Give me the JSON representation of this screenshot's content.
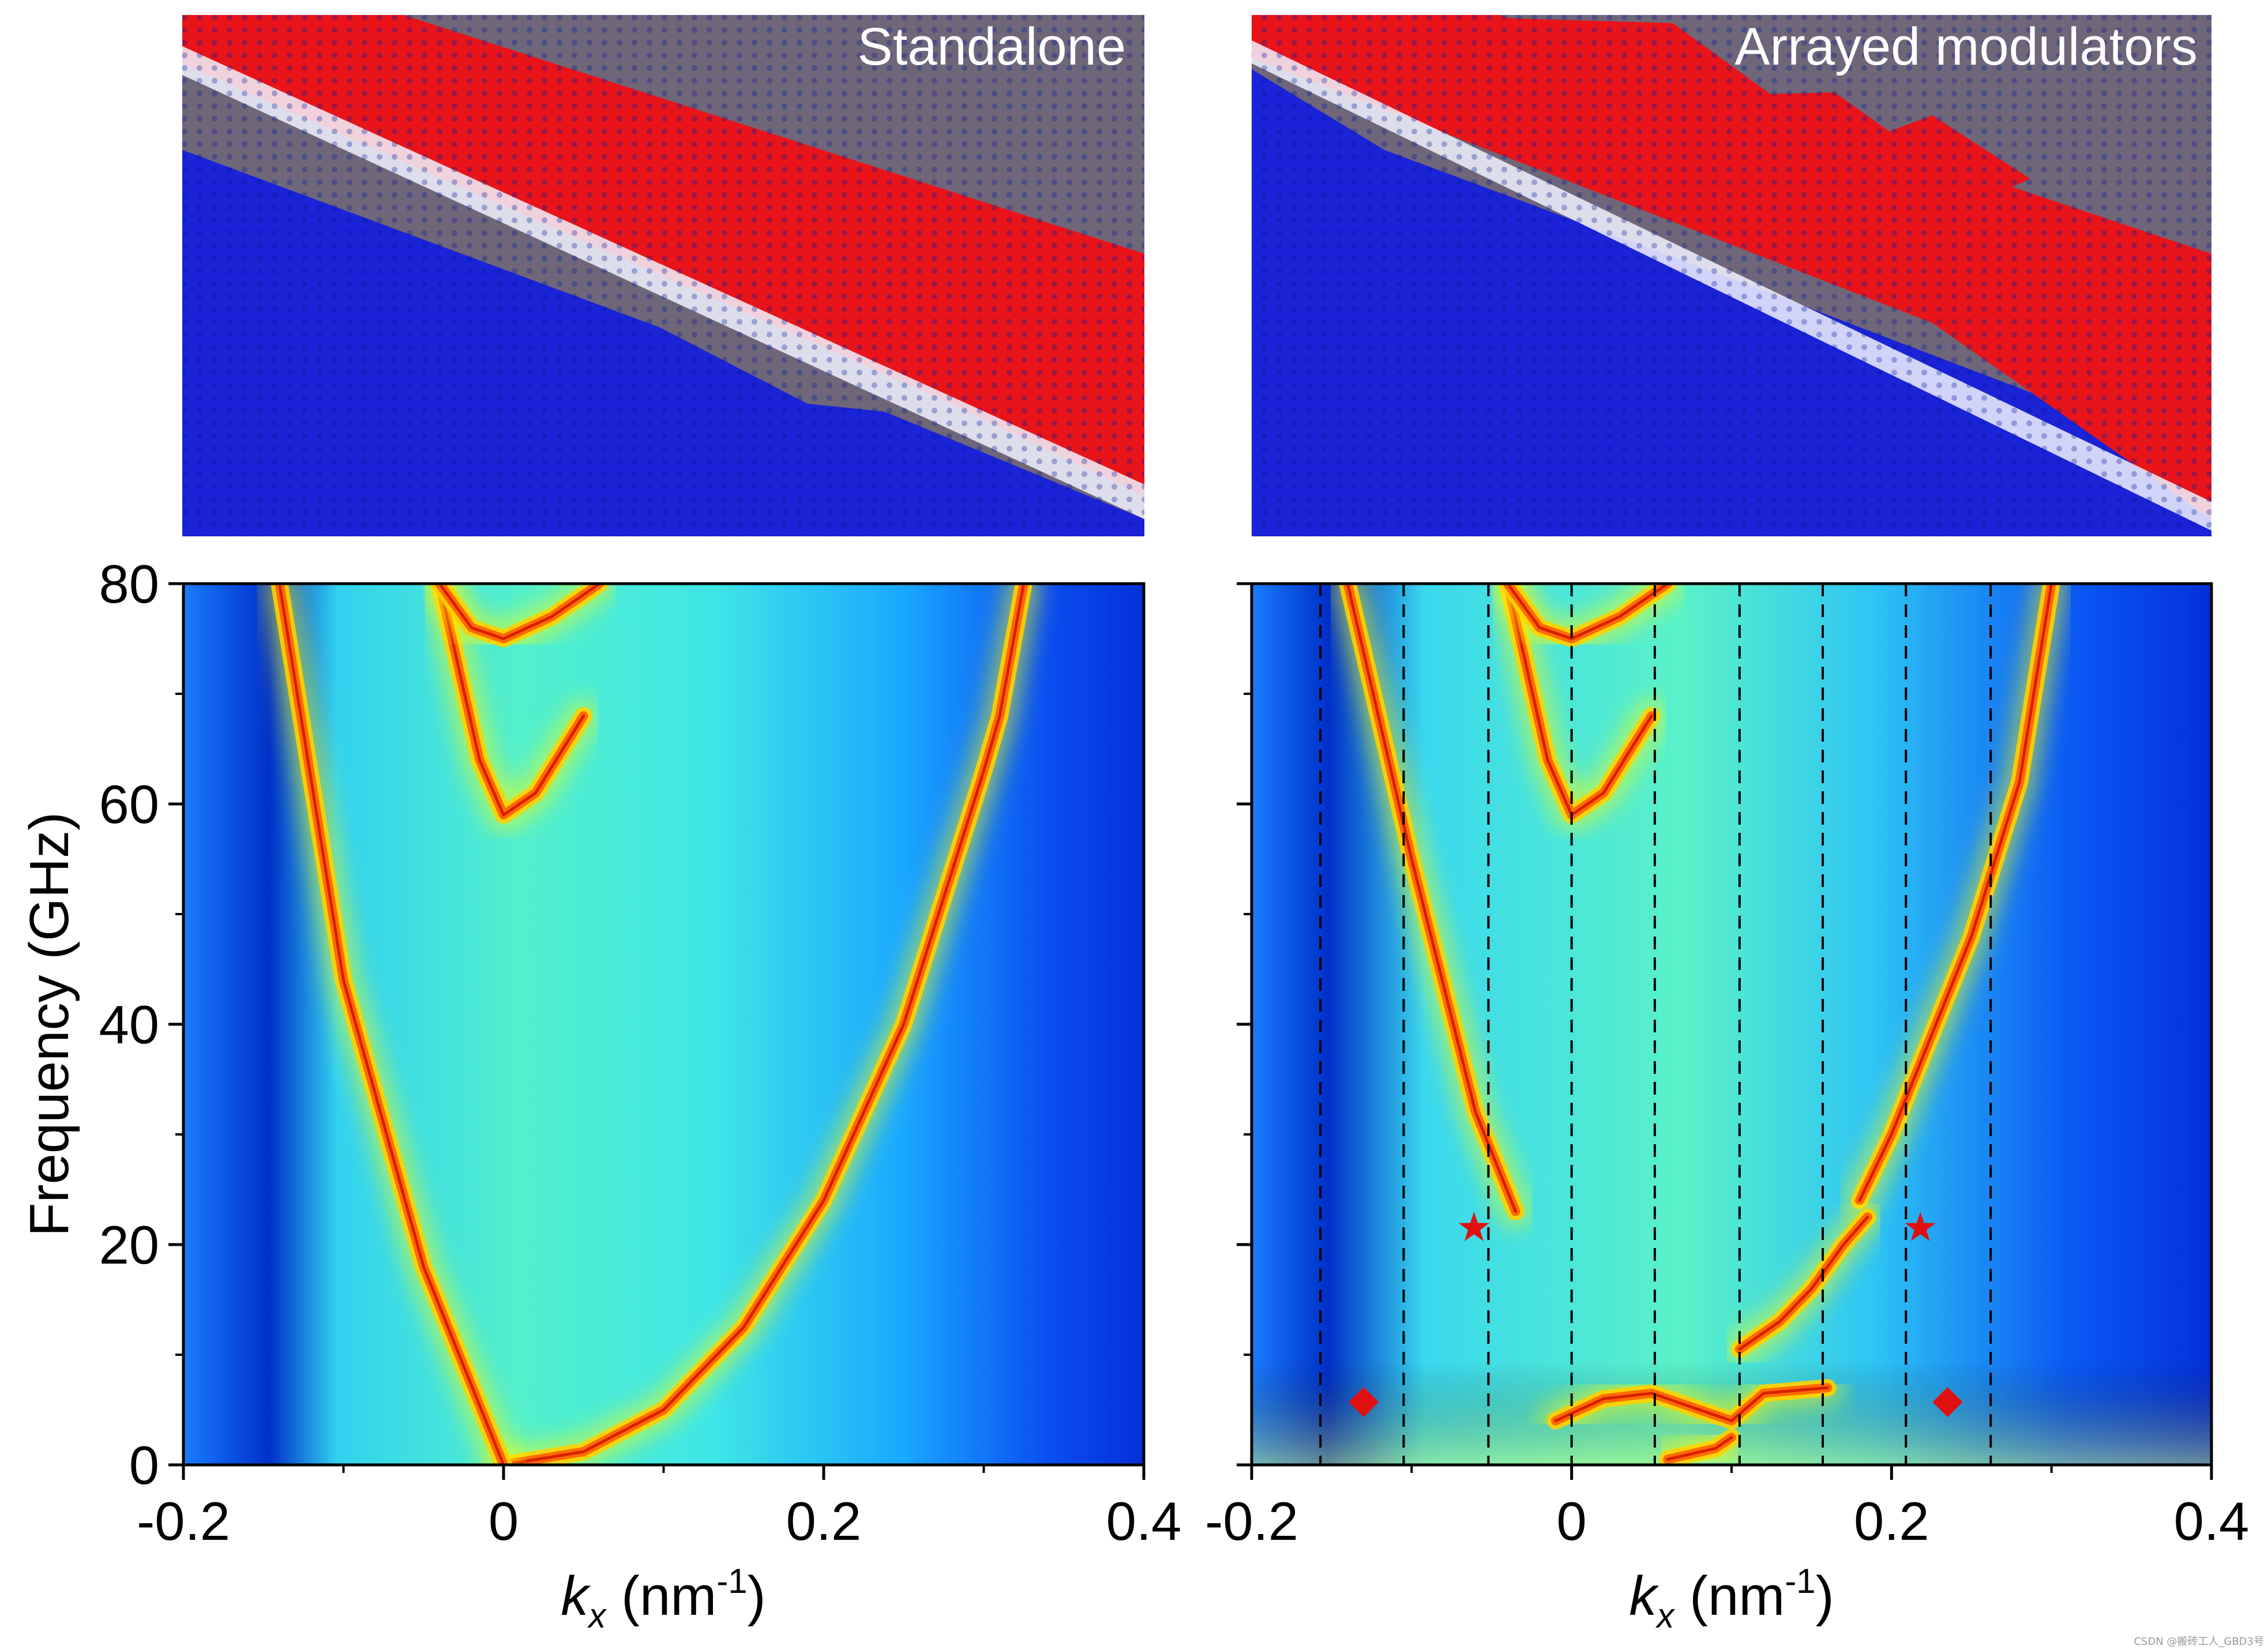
{
  "colors": {
    "spin_up": "#e8141a",
    "spin_down": "#1a23d6",
    "panel_bg": "#6f6679",
    "marker": "#e01010",
    "colormap": [
      "#00008f",
      "#0030ff",
      "#00c8ff",
      "#2cf0d8",
      "#ffff00",
      "#ff7f00",
      "#c00000"
    ]
  },
  "top_panels": {
    "left": {
      "title": "Standalone",
      "icon": "spin-texture-render"
    },
    "right": {
      "title": "Arrayed modulators",
      "icon": "spin-texture-render"
    }
  },
  "chart_data": [
    {
      "type": "heatmap",
      "name": "standalone-dispersion",
      "title": "",
      "xlabel_italic": "k",
      "xlabel_sub": "x",
      "xlabel_unit": " (nm",
      "xlabel_sup": "-1",
      "xlabel_close": ")",
      "ylabel": "Frequency (GHz)",
      "xlim": [
        -0.2,
        0.4
      ],
      "ylim": [
        0,
        80
      ],
      "xticks": [
        -0.2,
        0,
        0.2,
        0.4
      ],
      "xtick_labels": [
        "-0.2",
        "0",
        "0.2",
        "0.4"
      ],
      "yticks": [
        0,
        20,
        40,
        60,
        80
      ],
      "ytick_labels": [
        "0",
        "20",
        "40",
        "60",
        "80"
      ],
      "ridges": [
        {
          "name": "right-parabola",
          "points": [
            [
              0.0,
              0
            ],
            [
              0.05,
              1.2
            ],
            [
              0.1,
              5.0
            ],
            [
              0.15,
              12.5
            ],
            [
              0.2,
              24
            ],
            [
              0.25,
              40
            ],
            [
              0.3,
              63
            ],
            [
              0.31,
              68
            ],
            [
              0.325,
              80
            ]
          ]
        },
        {
          "name": "left-linear",
          "points": [
            [
              0.0,
              0
            ],
            [
              -0.05,
              18
            ],
            [
              -0.1,
              44
            ],
            [
              -0.14,
              80
            ]
          ]
        },
        {
          "name": "arc-59",
          "points": [
            [
              -0.04,
              80
            ],
            [
              -0.015,
              64
            ],
            [
              0.0,
              59
            ],
            [
              0.02,
              61
            ],
            [
              0.05,
              68
            ]
          ]
        },
        {
          "name": "arc-75",
          "points": [
            [
              -0.04,
              80
            ],
            [
              -0.02,
              76
            ],
            [
              0.0,
              75
            ],
            [
              0.03,
              77
            ],
            [
              0.06,
              80
            ]
          ]
        }
      ]
    },
    {
      "type": "heatmap",
      "name": "arrayed-dispersion",
      "title": "",
      "xlabel_italic": "k",
      "xlabel_sub": "x",
      "xlabel_unit": " (nm",
      "xlabel_sup": "-1",
      "xlabel_close": ")",
      "ylabel": "",
      "xlim": [
        -0.2,
        0.4
      ],
      "ylim": [
        0,
        80
      ],
      "xticks": [
        -0.2,
        0,
        0.2,
        0.4
      ],
      "xtick_labels": [
        "-0.2",
        "0",
        "0.2",
        "0.4"
      ],
      "yticks": [
        0,
        20,
        40,
        60,
        80
      ],
      "ytick_labels": [],
      "zone_boundaries": [
        -0.157,
        -0.105,
        -0.052,
        0.0,
        0.052,
        0.105,
        0.157,
        0.209,
        0.262
      ],
      "ridges": [
        {
          "name": "right-parabola-upper",
          "points": [
            [
              0.18,
              24
            ],
            [
              0.2,
              30
            ],
            [
              0.25,
              48
            ],
            [
              0.28,
              62
            ],
            [
              0.3,
              80
            ]
          ]
        },
        {
          "name": "right-parabola-lower",
          "points": [
            [
              0.105,
              10.5
            ],
            [
              0.13,
              13
            ],
            [
              0.15,
              16
            ],
            [
              0.17,
              20
            ],
            [
              0.185,
              22.5
            ]
          ]
        },
        {
          "name": "left-linear",
          "points": [
            [
              -0.035,
              23
            ],
            [
              -0.06,
              32
            ],
            [
              -0.1,
              55
            ],
            [
              -0.14,
              80
            ]
          ]
        },
        {
          "name": "arc-59",
          "points": [
            [
              -0.04,
              80
            ],
            [
              -0.015,
              64
            ],
            [
              0.0,
              59
            ],
            [
              0.02,
              61
            ],
            [
              0.05,
              68
            ]
          ]
        },
        {
          "name": "arc-75",
          "points": [
            [
              -0.04,
              80
            ],
            [
              -0.02,
              76
            ],
            [
              0.0,
              75
            ],
            [
              0.03,
              77
            ],
            [
              0.06,
              80
            ]
          ]
        },
        {
          "name": "low-band",
          "points": [
            [
              -0.01,
              4
            ],
            [
              0.02,
              6
            ],
            [
              0.05,
              6.5
            ],
            [
              0.08,
              5
            ],
            [
              0.1,
              4
            ],
            [
              0.12,
              6.5
            ],
            [
              0.16,
              7
            ]
          ]
        },
        {
          "name": "band-bottom",
          "points": [
            [
              0.06,
              0.5
            ],
            [
              0.09,
              1.5
            ],
            [
              0.1,
              2.5
            ]
          ]
        }
      ],
      "markers": [
        {
          "symbol": "star",
          "x": -0.061,
          "y": 21.5
        },
        {
          "symbol": "star",
          "x": 0.218,
          "y": 21.5
        },
        {
          "symbol": "diamond",
          "x": -0.13,
          "y": 5.7
        },
        {
          "symbol": "diamond",
          "x": 0.235,
          "y": 5.7
        }
      ]
    }
  ],
  "credit": "CSDN @搬砖工人_GBD3号"
}
